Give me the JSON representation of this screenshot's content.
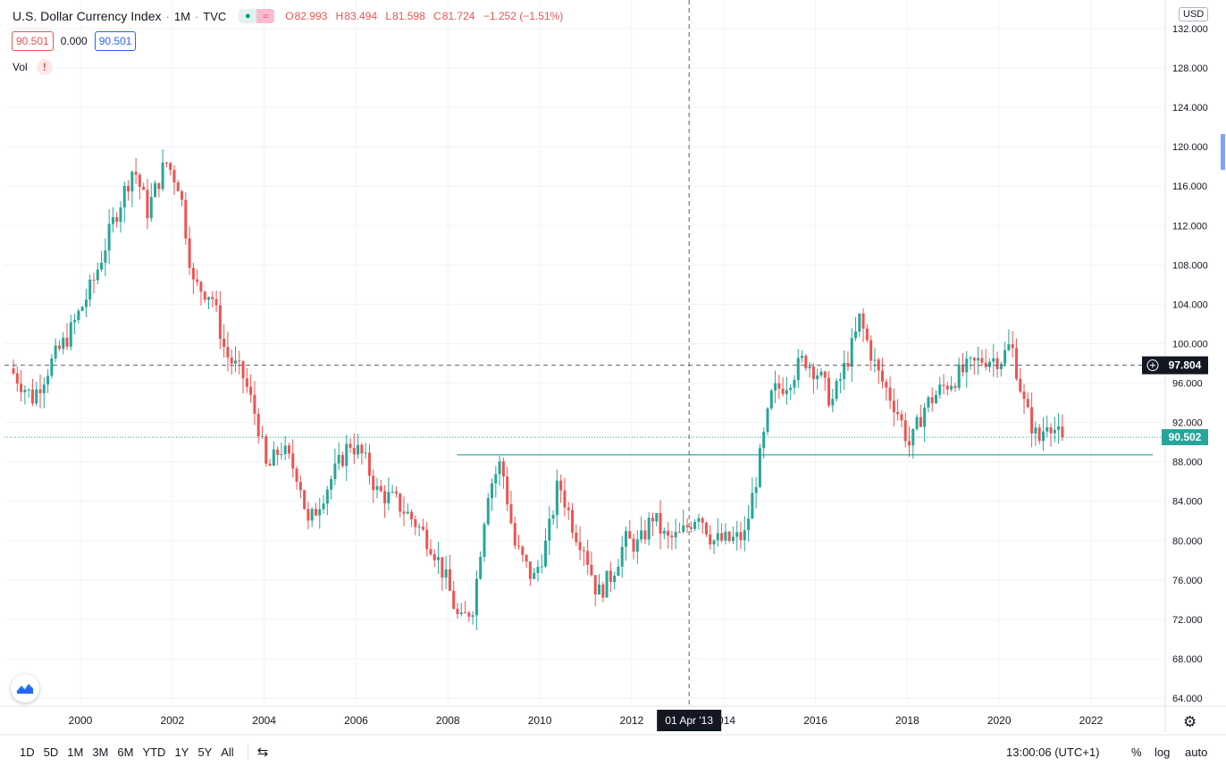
{
  "header": {
    "title": "U.S. Dollar Currency Index",
    "interval": "1M",
    "exchange": "TVC",
    "ohlc": [
      {
        "k": "O",
        "v": "82.993"
      },
      {
        "k": "H",
        "v": "83.494"
      },
      {
        "k": "L",
        "v": "81.598"
      },
      {
        "k": "C",
        "v": "81.724"
      }
    ],
    "change": "−1.252 (−1.51%)"
  },
  "sell_price": "90.501",
  "spread": "0.000",
  "buy_price": "90.501",
  "vol_label": "Vol",
  "currency": "USD",
  "crosshair": {
    "date_label": "01 Apr '13",
    "price_label": "97.804"
  },
  "last_price_label": "90.502",
  "toolbar": {
    "timeframes": [
      "1D",
      "5D",
      "1M",
      "3M",
      "6M",
      "YTD",
      "1Y",
      "5Y",
      "All"
    ],
    "clock": "13:00:06 (UTC+1)",
    "percent": "%",
    "log": "log",
    "auto": "auto"
  },
  "colors": {
    "up": "#26a69a",
    "down": "#ef5350",
    "accent": "#2962ff",
    "grid": "#f0f3fa"
  },
  "chart_data": {
    "type": "candlestick",
    "title": "U.S. Dollar Currency Index",
    "ylim": [
      62,
      133
    ],
    "y_ticks": [
      "132.000",
      "128.000",
      "124.000",
      "120.000",
      "116.000",
      "112.000",
      "108.000",
      "104.000",
      "100.000",
      "96.000",
      "92.000",
      "88.000",
      "84.000",
      "80.000",
      "76.000",
      "72.000",
      "68.000",
      "64.000"
    ],
    "x_ticks": [
      "2000",
      "2002",
      "2004",
      "2006",
      "2008",
      "2010",
      "2012",
      "2014",
      "2016",
      "2018",
      "2020",
      "2022"
    ],
    "horizontal_line": 88.7,
    "last_price": 90.502,
    "crosshair_price": 97.804,
    "crosshair_date": "2013-04",
    "anchors": [
      [
        1998.5,
        97.5
      ],
      [
        1999.0,
        94.5
      ],
      [
        1999.4,
        98.0
      ],
      [
        1999.8,
        101.0
      ],
      [
        2000.3,
        106.0
      ],
      [
        2000.8,
        113.0
      ],
      [
        2001.2,
        118.0
      ],
      [
        2001.5,
        113.5
      ],
      [
        2001.9,
        118.5
      ],
      [
        2002.2,
        116.0
      ],
      [
        2002.5,
        106.0
      ],
      [
        2002.9,
        105.0
      ],
      [
        2003.2,
        99.0
      ],
      [
        2003.6,
        96.5
      ],
      [
        2003.9,
        92.0
      ],
      [
        2004.1,
        87.0
      ],
      [
        2004.4,
        89.5
      ],
      [
        2004.8,
        86.5
      ],
      [
        2005.0,
        81.5
      ],
      [
        2005.3,
        84.5
      ],
      [
        2005.7,
        88.0
      ],
      [
        2005.9,
        90.0
      ],
      [
        2006.2,
        88.5
      ],
      [
        2006.5,
        85.0
      ],
      [
        2006.9,
        84.0
      ],
      [
        2007.3,
        82.0
      ],
      [
        2007.7,
        79.5
      ],
      [
        2008.0,
        76.0
      ],
      [
        2008.3,
        71.5
      ],
      [
        2008.6,
        73.5
      ],
      [
        2008.9,
        85.0
      ],
      [
        2009.2,
        88.0
      ],
      [
        2009.5,
        79.5
      ],
      [
        2009.9,
        76.0
      ],
      [
        2010.2,
        80.0
      ],
      [
        2010.45,
        86.0
      ],
      [
        2010.8,
        81.0
      ],
      [
        2011.0,
        79.5
      ],
      [
        2011.3,
        74.5
      ],
      [
        2011.6,
        76.5
      ],
      [
        2011.9,
        80.0
      ],
      [
        2012.2,
        79.5
      ],
      [
        2012.5,
        82.5
      ],
      [
        2012.8,
        80.0
      ],
      [
        2013.1,
        80.5
      ],
      [
        2013.5,
        83.0
      ],
      [
        2013.8,
        80.0
      ],
      [
        2014.2,
        80.0
      ],
      [
        2014.5,
        80.5
      ],
      [
        2014.8,
        87.5
      ],
      [
        2015.1,
        95.0
      ],
      [
        2015.4,
        96.0
      ],
      [
        2015.8,
        98.5
      ],
      [
        2016.1,
        97.0
      ],
      [
        2016.4,
        94.0
      ],
      [
        2016.9,
        100.5
      ],
      [
        2017.0,
        102.5
      ],
      [
        2017.4,
        97.0
      ],
      [
        2017.8,
        93.5
      ],
      [
        2018.1,
        89.5
      ],
      [
        2018.4,
        93.5
      ],
      [
        2018.8,
        95.5
      ],
      [
        2019.2,
        97.0
      ],
      [
        2019.7,
        98.5
      ],
      [
        2020.1,
        98.5
      ],
      [
        2020.3,
        100.0
      ],
      [
        2020.6,
        93.5
      ],
      [
        2020.9,
        90.0
      ],
      [
        2021.1,
        92.5
      ],
      [
        2021.35,
        90.5
      ]
    ]
  }
}
